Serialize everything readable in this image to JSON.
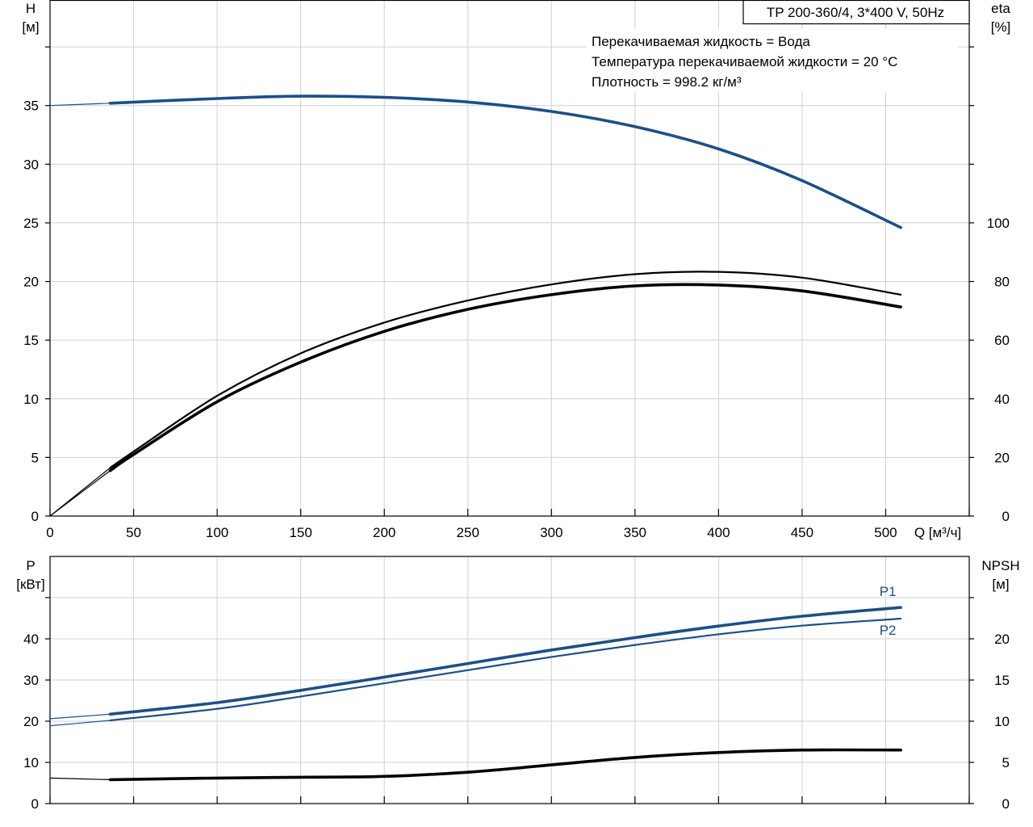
{
  "chart_data": [
    {
      "type": "line",
      "title": "",
      "model_label": "TP 200-360/4, 3*400 V, 50Hz",
      "info_lines": [
        "Перекачиваемая жидкость = Вода",
        "Температура перекачиваемой жидкости = 20 °C",
        "Плотность = 998.2 кг/м³"
      ],
      "xlabel": "Q [м³/ч]",
      "xlim": [
        0,
        550
      ],
      "xticks": [
        0,
        50,
        100,
        150,
        200,
        250,
        300,
        350,
        400,
        450,
        500
      ],
      "y_left": {
        "label_line1": "H",
        "label_line2": "[м]",
        "lim": [
          0,
          44
        ],
        "ticks": [
          0,
          5,
          10,
          15,
          20,
          25,
          30,
          35
        ]
      },
      "y_right": {
        "label_line1": "eta",
        "label_line2": "[%]",
        "lim": [
          0,
          176
        ],
        "ticks": [
          0,
          20,
          40,
          60,
          80,
          100
        ]
      },
      "grid": true,
      "series": [
        {
          "axis": "left",
          "color": "#1c4f86",
          "style": "thick",
          "x": [
            0,
            36,
            100,
            150,
            200,
            250,
            300,
            350,
            400,
            450,
            509
          ],
          "y": [
            35.0,
            35.2,
            35.6,
            35.8,
            35.7,
            35.3,
            34.5,
            33.2,
            31.3,
            28.6,
            24.6
          ]
        },
        {
          "axis": "right",
          "color": "#000000",
          "style": "thin",
          "x": [
            0,
            36,
            50,
            100,
            150,
            200,
            250,
            300,
            350,
            400,
            450,
            509
          ],
          "y": [
            0,
            16.5,
            22,
            41,
            55.5,
            66,
            73.5,
            79,
            82.5,
            83.3,
            81.3,
            75.5
          ]
        },
        {
          "axis": "right",
          "color": "#000000",
          "style": "thick",
          "x": [
            0,
            36,
            50,
            100,
            150,
            200,
            250,
            300,
            350,
            400,
            450,
            509
          ],
          "y": [
            0,
            15.5,
            21,
            39,
            52.5,
            63,
            70.5,
            75.5,
            78.5,
            78.8,
            76.8,
            71.3
          ]
        }
      ]
    },
    {
      "type": "line",
      "title": "",
      "xlim": [
        0,
        550
      ],
      "xticks": [
        0,
        50,
        100,
        150,
        200,
        250,
        300,
        350,
        400,
        450,
        500
      ],
      "y_left": {
        "label_line1": "P",
        "label_line2": "[кВт]",
        "lim": [
          0,
          60
        ],
        "ticks": [
          0,
          10,
          20,
          30,
          40
        ]
      },
      "y_right": {
        "label_line1": "NPSH",
        "label_line2": "[м]",
        "lim": [
          0,
          30
        ],
        "ticks": [
          0,
          5,
          10,
          15,
          20
        ]
      },
      "grid": true,
      "series": [
        {
          "name": "P1",
          "axis": "left",
          "color": "#1c4f86",
          "style": "thick",
          "x": [
            0,
            36,
            100,
            150,
            200,
            250,
            300,
            350,
            400,
            450,
            509
          ],
          "y": [
            20.6,
            21.7,
            24.5,
            27.5,
            30.7,
            34.0,
            37.3,
            40.3,
            43.1,
            45.5,
            47.6
          ]
        },
        {
          "name": "P2",
          "axis": "left",
          "color": "#1c4f86",
          "style": "thin",
          "x": [
            0,
            36,
            100,
            150,
            200,
            250,
            300,
            350,
            400,
            450,
            509
          ],
          "y": [
            18.9,
            20.2,
            23.0,
            26.0,
            29.2,
            32.4,
            35.6,
            38.5,
            41.1,
            43.2,
            44.9
          ]
        },
        {
          "axis": "right",
          "color": "#000000",
          "style": "thick",
          "x": [
            0,
            36,
            100,
            150,
            200,
            250,
            300,
            350,
            400,
            450,
            509
          ],
          "y": [
            3.1,
            2.9,
            3.1,
            3.2,
            3.3,
            3.8,
            4.7,
            5.6,
            6.2,
            6.5,
            6.5
          ]
        }
      ]
    }
  ]
}
